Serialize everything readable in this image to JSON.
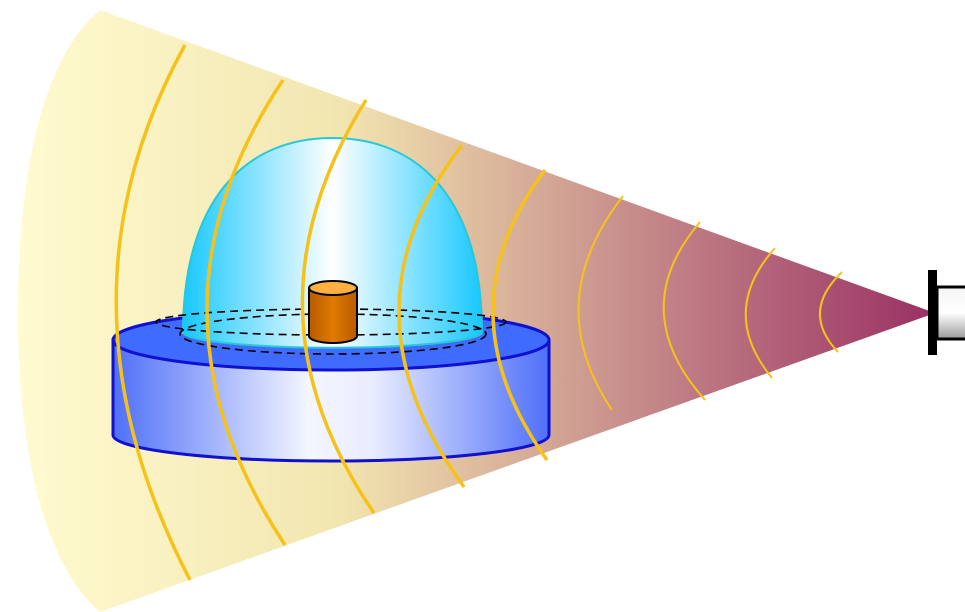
{
  "diagram": {
    "components": [
      {
        "id": "emission-cone",
        "icon": "cone-beam",
        "fill_start": "#fffbd0",
        "fill_end": "#9a3064"
      },
      {
        "id": "wavefronts",
        "icon": "arc-wave",
        "color": "#f6c21a",
        "outer_count": 6,
        "inner_count": 4
      },
      {
        "id": "transmitter",
        "icon": "emitter-housing",
        "body_color": "#d8d8d8",
        "bracket_color": "#000000"
      },
      {
        "id": "base-disk",
        "icon": "cylinder-disk",
        "edge_color": "#1010d0",
        "side_color": "#4f6ff8",
        "top_color": "#3f6bff"
      },
      {
        "id": "dome",
        "icon": "hemisphere",
        "edge_color": "#28c8d8",
        "fill_edge": "#18c8ff",
        "fill_center": "#ffffff"
      },
      {
        "id": "target-sample",
        "icon": "small-cylinder",
        "side_color": "#e07a00",
        "top_color": "#ffb040"
      }
    ]
  }
}
